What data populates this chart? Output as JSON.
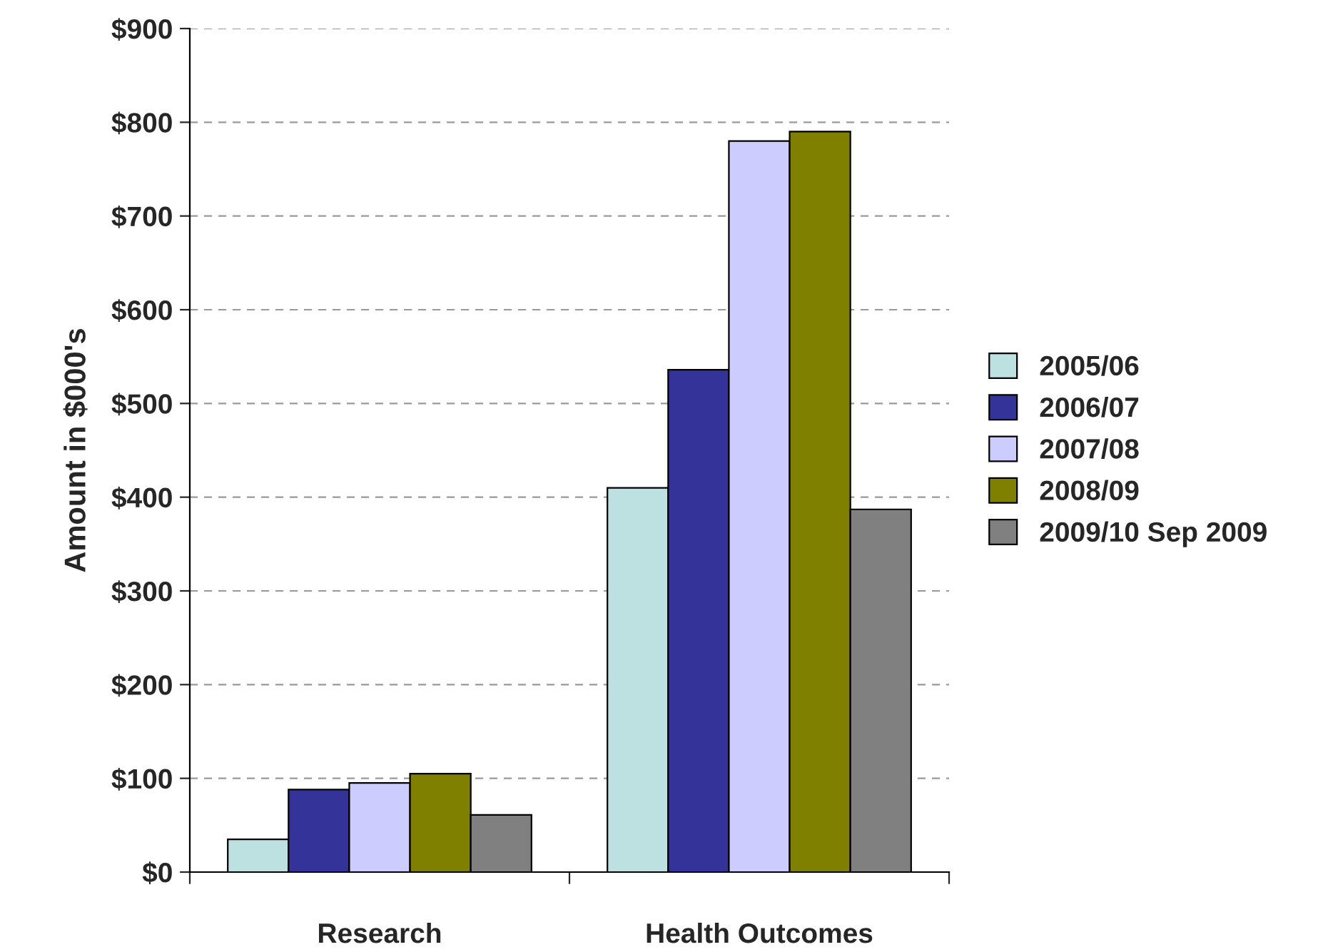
{
  "chart_data": {
    "type": "bar",
    "ylabel": "Amount in $000's",
    "categories": [
      "Research",
      "Health Outcomes"
    ],
    "series": [
      {
        "name": "2005/06",
        "color": "#bde0e0",
        "values": [
          35,
          410
        ]
      },
      {
        "name": "2006/07",
        "color": "#333399",
        "values": [
          88,
          536
        ]
      },
      {
        "name": "2007/08",
        "color": "#ccccff",
        "values": [
          95,
          780
        ]
      },
      {
        "name": "2008/09",
        "color": "#808000",
        "values": [
          105,
          790
        ]
      },
      {
        "name": "2009/10 Sep 2009",
        "color": "#808080",
        "values": [
          61,
          387
        ]
      }
    ],
    "ylim": [
      0,
      900
    ],
    "yticks": [
      {
        "value": 0,
        "label": "$0"
      },
      {
        "value": 100,
        "label": "$100"
      },
      {
        "value": 200,
        "label": "$200"
      },
      {
        "value": 300,
        "label": "$300"
      },
      {
        "value": 400,
        "label": "$400"
      },
      {
        "value": 500,
        "label": "$500"
      },
      {
        "value": 600,
        "label": "$600"
      },
      {
        "value": 700,
        "label": "$700"
      },
      {
        "value": 800,
        "label": "$800"
      },
      {
        "value": 900,
        "label": "$900"
      }
    ],
    "grid": "y",
    "legend": "right"
  }
}
